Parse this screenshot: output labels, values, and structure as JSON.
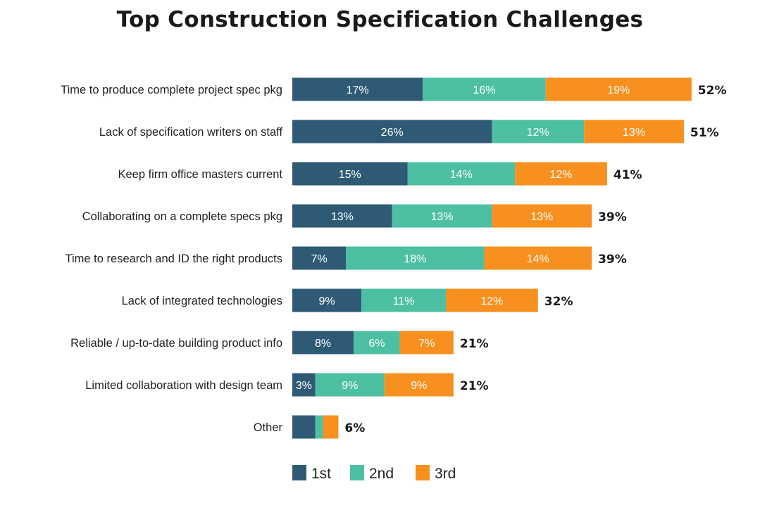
{
  "chart_data": {
    "type": "bar",
    "orientation": "horizontal",
    "stacked": true,
    "title": "Top Construction Specification Challenges",
    "categories": [
      "Time to produce complete project spec pkg",
      "Lack of specification writers on staff",
      "Keep firm office masters current",
      "Collaborating on a complete specs pkg",
      "Time to research and ID the right products",
      "Lack of integrated technologies",
      "Reliable / up-to-date building product info",
      "Limited collaboration with design team",
      "Other"
    ],
    "series": [
      {
        "name": "1st",
        "color": "#2e5a75",
        "values": [
          17,
          26,
          15,
          13,
          7,
          9,
          8,
          3,
          3
        ]
      },
      {
        "name": "2nd",
        "color": "#4dbfa3",
        "values": [
          16,
          12,
          14,
          13,
          18,
          11,
          6,
          9,
          1
        ]
      },
      {
        "name": "3rd",
        "color": "#f7901e",
        "values": [
          19,
          13,
          12,
          13,
          14,
          12,
          7,
          9,
          2
        ]
      }
    ],
    "segment_labels": [
      [
        "17%",
        "16%",
        "19%"
      ],
      [
        "26%",
        "12%",
        "13%"
      ],
      [
        "15%",
        "14%",
        "12%"
      ],
      [
        "13%",
        "13%",
        "13%"
      ],
      [
        "7%",
        "18%",
        "14%"
      ],
      [
        "9%",
        "11%",
        "12%"
      ],
      [
        "8%",
        "6%",
        "7%"
      ],
      [
        "3%",
        "9%",
        "9%"
      ],
      [
        "",
        "",
        ""
      ]
    ],
    "totals": [
      "52%",
      "51%",
      "41%",
      "39%",
      "39%",
      "32%",
      "21%",
      "21%",
      "6%"
    ],
    "xlim": [
      0,
      53
    ],
    "grid": false,
    "legend_position": "bottom"
  }
}
